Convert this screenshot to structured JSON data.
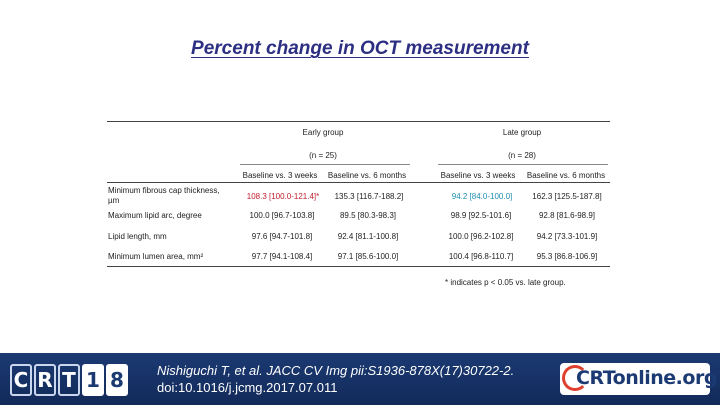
{
  "title": "Percent change in OCT measurement",
  "groups": {
    "early": {
      "label": "Early group",
      "n": "(n = 25)"
    },
    "late": {
      "label": "Late group",
      "n": "(n = 28)"
    }
  },
  "columns": [
    "Baseline vs. 3 weeks",
    "Baseline vs. 6 months",
    "Baseline vs. 3 weeks",
    "Baseline vs. 6 months"
  ],
  "rows": [
    {
      "label_line1": "Minimum fibrous cap thickness,",
      "label_line2": "µm",
      "values": [
        "108.3 [100.0-121.4]*",
        "135.3 [116.7-188.2]",
        "94.2 [84.0-100.0]",
        "162.3 [125.5-187.8]"
      ]
    },
    {
      "label": "Maximum lipid arc, degree",
      "values": [
        "100.0 [96.7-103.8]",
        "89.5 [80.3-98.3]",
        "98.9 [92.5-101.6]",
        "92.8 [81.6-98.9]"
      ]
    },
    {
      "label": "Lipid length, mm",
      "values": [
        "97.6 [94.7-101.8]",
        "92.4 [81.1-100.8]",
        "100.0 [96.2-102.8]",
        "94.2 [73.3-101.9]"
      ]
    },
    {
      "label": "Minimum lumen area, mm²",
      "values": [
        "97.7 [94.1-108.4]",
        "97.1 [85.6-100.0]",
        "100.4 [96.8-110.7]",
        "95.3 [86.8-106.9]"
      ]
    }
  ],
  "footnote": "* indicates p < 0.05 vs. late group.",
  "colors": {
    "title": "#2d2f82",
    "significant": "#c0202e",
    "nonsignificant_highlight": "#1d90b0",
    "footer_bg": "#1b3a73"
  },
  "footer": {
    "crt_logo_letters": [
      "C",
      "R",
      "T"
    ],
    "crt_logo_numbers": [
      "1",
      "8"
    ],
    "citation_line1": "Nishiguchi T, et al. JACC CV Img pii:S1936-878X(17)30722-2.",
    "citation_line2": "doi:10.1016/j.jcmg.2017.07.011",
    "online_logo": "CRTonline.org"
  }
}
